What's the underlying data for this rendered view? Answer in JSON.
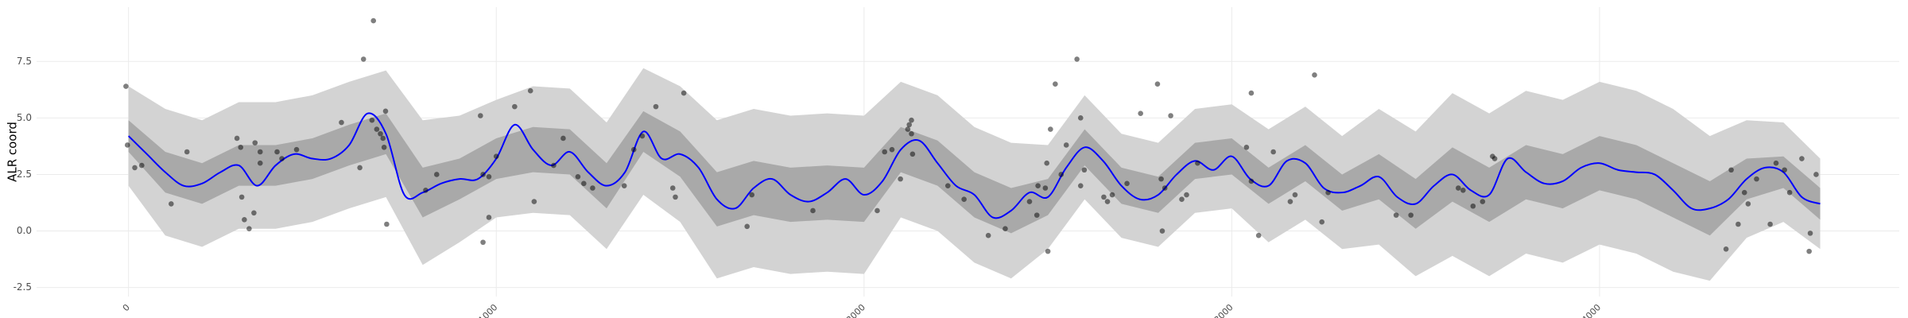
{
  "chart_data": {
    "type": "gp",
    "y_label": "ALR coord",
    "xlim": [
      -250,
      4815
    ],
    "ylim": [
      -2.9,
      9.9
    ],
    "xticks": [
      0,
      1000,
      2000,
      3000,
      4000
    ],
    "yticks": [
      -2.5,
      {
        "value": 0,
        "label": "0.0"
      },
      2.5,
      {
        "value": 5,
        "label": "5.0"
      },
      7.5
    ],
    "grid": true,
    "bands": [
      {
        "color": "#d3d3d3",
        "x": [
          0,
          100,
          200,
          300,
          400,
          500,
          600,
          700,
          800,
          900,
          1000,
          1100,
          1200,
          1300,
          1400,
          1500,
          1600,
          1700,
          1800,
          1900,
          2000,
          2100,
          2200,
          2300,
          2400,
          2500,
          2600,
          2700,
          2800,
          2900,
          3000,
          3100,
          3200,
          3300,
          3400,
          3500,
          3600,
          3700,
          3800,
          3900,
          4000,
          4100,
          4200,
          4300,
          4400,
          4500,
          4600
        ],
        "lower": [
          2.0,
          -0.2,
          -0.7,
          0.1,
          0.1,
          0.4,
          1.0,
          1.5,
          -1.5,
          -0.5,
          0.6,
          0.8,
          0.7,
          -0.8,
          1.6,
          0.4,
          -2.1,
          -1.6,
          -1.9,
          -1.8,
          -1.9,
          0.6,
          0.0,
          -1.4,
          -2.1,
          -0.8,
          1.4,
          -0.3,
          -0.7,
          0.8,
          1.0,
          -0.5,
          0.5,
          -0.8,
          -0.6,
          -2.0,
          -1.1,
          -2.0,
          -1.0,
          -1.4,
          -0.6,
          -1.0,
          -1.8,
          -2.2,
          -0.3,
          0.4,
          -0.8
        ],
        "upper": [
          6.4,
          5.4,
          4.9,
          5.7,
          5.7,
          6.0,
          6.6,
          7.1,
          4.9,
          5.1,
          5.8,
          6.4,
          6.3,
          4.8,
          7.2,
          6.4,
          4.9,
          5.4,
          5.1,
          5.2,
          5.1,
          6.6,
          6.0,
          4.6,
          3.9,
          3.8,
          6.0,
          4.3,
          3.9,
          5.4,
          5.6,
          4.5,
          5.5,
          4.2,
          5.4,
          4.4,
          6.1,
          5.2,
          6.2,
          5.8,
          6.6,
          6.2,
          5.4,
          4.2,
          4.9,
          4.8,
          3.2
        ]
      },
      {
        "color": "#a9a9a9",
        "x": [
          0,
          100,
          200,
          300,
          400,
          500,
          600,
          700,
          800,
          900,
          1000,
          1100,
          1200,
          1300,
          1400,
          1500,
          1600,
          1700,
          1800,
          1900,
          2000,
          2100,
          2200,
          2300,
          2400,
          2500,
          2600,
          2700,
          2800,
          2900,
          3000,
          3100,
          3200,
          3300,
          3400,
          3500,
          3600,
          3700,
          3800,
          3900,
          4000,
          4100,
          4200,
          4300,
          4400,
          4500,
          4600
        ],
        "lower": [
          3.5,
          1.7,
          1.2,
          2.0,
          2.0,
          2.3,
          2.9,
          3.4,
          0.6,
          1.4,
          2.3,
          2.6,
          2.5,
          1.0,
          3.5,
          2.4,
          0.2,
          0.7,
          0.4,
          0.5,
          0.4,
          2.6,
          2.0,
          0.6,
          -0.1,
          0.7,
          2.9,
          1.2,
          0.8,
          2.3,
          2.5,
          1.2,
          2.2,
          0.9,
          1.4,
          0.1,
          1.3,
          0.4,
          1.4,
          1.0,
          1.8,
          1.4,
          0.6,
          -0.2,
          1.4,
          1.9,
          0.5
        ],
        "upper": [
          4.9,
          3.5,
          3.0,
          3.8,
          3.8,
          4.1,
          4.7,
          5.2,
          2.8,
          3.2,
          4.1,
          4.6,
          4.5,
          3.0,
          5.3,
          4.4,
          2.6,
          3.1,
          2.8,
          2.9,
          2.8,
          4.6,
          4.0,
          2.6,
          1.9,
          2.3,
          4.5,
          2.8,
          2.4,
          3.9,
          4.1,
          2.8,
          3.8,
          2.5,
          3.4,
          2.3,
          3.7,
          2.8,
          3.8,
          3.4,
          4.2,
          3.8,
          3.0,
          2.2,
          3.2,
          3.3,
          1.9
        ]
      }
    ],
    "line": {
      "color": "#0000ff",
      "x": [
        0,
        50,
        100,
        150,
        200,
        250,
        300,
        350,
        400,
        450,
        500,
        550,
        600,
        650,
        700,
        750,
        800,
        850,
        900,
        950,
        1000,
        1050,
        1100,
        1150,
        1200,
        1250,
        1300,
        1350,
        1400,
        1450,
        1500,
        1550,
        1600,
        1650,
        1700,
        1750,
        1800,
        1850,
        1900,
        1950,
        2000,
        2050,
        2100,
        2150,
        2200,
        2250,
        2300,
        2350,
        2400,
        2450,
        2500,
        2550,
        2600,
        2650,
        2700,
        2750,
        2800,
        2850,
        2900,
        2950,
        3000,
        3050,
        3100,
        3150,
        3200,
        3250,
        3300,
        3350,
        3400,
        3450,
        3500,
        3550,
        3600,
        3650,
        3700,
        3750,
        3800,
        3850,
        3900,
        3950,
        4000,
        4050,
        4100,
        4150,
        4200,
        4250,
        4300,
        4350,
        4400,
        4450,
        4500,
        4550,
        4600
      ],
      "values": [
        4.2,
        3.4,
        2.6,
        2.0,
        2.1,
        2.6,
        2.9,
        2.0,
        2.9,
        3.4,
        3.2,
        3.2,
        3.8,
        5.2,
        4.3,
        1.6,
        1.7,
        2.1,
        2.3,
        2.3,
        3.2,
        4.7,
        3.6,
        2.9,
        3.5,
        2.6,
        2.0,
        2.6,
        4.4,
        3.2,
        3.4,
        2.8,
        1.4,
        1.0,
        1.9,
        2.3,
        1.6,
        1.3,
        1.7,
        2.3,
        1.6,
        2.2,
        3.6,
        4.0,
        3.0,
        2.0,
        1.6,
        0.6,
        0.9,
        1.7,
        1.5,
        2.8,
        3.7,
        3.1,
        2.0,
        1.4,
        1.6,
        2.5,
        3.1,
        2.7,
        3.3,
        2.3,
        2.0,
        3.1,
        3.0,
        1.9,
        1.7,
        2.0,
        2.4,
        1.5,
        1.2,
        2.0,
        2.5,
        1.8,
        1.6,
        3.2,
        2.6,
        2.1,
        2.2,
        2.8,
        3.0,
        2.7,
        2.6,
        2.5,
        1.8,
        1.0,
        1.0,
        1.4,
        2.3,
        2.8,
        2.6,
        1.5,
        1.2
      ]
    },
    "points": {
      "color": "#000000",
      "x": [
        -7,
        -3,
        17,
        36,
        116,
        159,
        295,
        305,
        308,
        315,
        328,
        341,
        344,
        358,
        358,
        404,
        417,
        457,
        579,
        629,
        639,
        666,
        662,
        675,
        685,
        692,
        695,
        699,
        702,
        808,
        838,
        957,
        964,
        964,
        980,
        980,
        1000,
        1050,
        1093,
        1103,
        1156,
        1182,
        1222,
        1238,
        1262,
        1348,
        1374,
        1397,
        1434,
        1480,
        1487,
        1510,
        1682,
        1695,
        1861,
        2036,
        2056,
        2076,
        2099,
        2119,
        2123,
        2129,
        2129,
        2132,
        2228,
        2272,
        2338,
        2384,
        2450,
        2470,
        2473,
        2493,
        2497,
        2500,
        2507,
        2520,
        2536,
        2550,
        2579,
        2589,
        2589,
        2599,
        2652,
        2662,
        2675,
        2715,
        2752,
        2798,
        2808,
        2811,
        2818,
        2834,
        2864,
        2877,
        2907,
        3040,
        3053,
        3053,
        3073,
        3113,
        3159,
        3172,
        3225,
        3245,
        3262,
        3447,
        3487,
        3616,
        3629,
        3656,
        3682,
        3709,
        3715,
        4344,
        4358,
        4377,
        4394,
        4404,
        4427,
        4464,
        4480,
        4503,
        4517,
        4550,
        4573,
        4570,
        4589
      ],
      "values": [
        6.4,
        3.8,
        2.8,
        2.9,
        1.2,
        3.5,
        4.1,
        3.7,
        1.5,
        0.5,
        0.1,
        0.8,
        3.9,
        3.5,
        3.0,
        3.5,
        3.2,
        3.6,
        4.8,
        2.8,
        7.6,
        9.3,
        4.9,
        4.5,
        4.3,
        4.1,
        3.7,
        5.3,
        0.3,
        1.8,
        2.5,
        5.1,
        -0.5,
        2.5,
        0.6,
        2.4,
        3.3,
        5.5,
        6.2,
        1.3,
        2.9,
        4.1,
        2.4,
        2.1,
        1.9,
        2.0,
        3.6,
        4.2,
        5.5,
        1.9,
        1.5,
        6.1,
        0.2,
        1.6,
        0.9,
        0.9,
        3.5,
        3.6,
        2.3,
        4.5,
        4.7,
        4.9,
        4.3,
        3.4,
        2.0,
        1.4,
        -0.2,
        0.1,
        1.3,
        0.7,
        2.0,
        1.9,
        3.0,
        -0.9,
        4.5,
        6.5,
        2.5,
        3.8,
        7.6,
        5.0,
        2.0,
        2.7,
        1.5,
        1.3,
        1.6,
        2.1,
        5.2,
        6.5,
        2.3,
        0.0,
        1.9,
        5.1,
        1.4,
        1.6,
        3.0,
        3.7,
        6.1,
        2.2,
        -0.2,
        3.5,
        1.3,
        1.6,
        6.9,
        0.4,
        1.7,
        0.7,
        0.7,
        1.9,
        1.8,
        1.1,
        1.3,
        3.3,
        3.2,
        -0.8,
        2.7,
        0.3,
        1.7,
        1.2,
        2.3,
        0.3,
        3.0,
        2.7,
        1.7,
        3.2,
        -0.1,
        -0.9,
        2.5
      ]
    }
  }
}
